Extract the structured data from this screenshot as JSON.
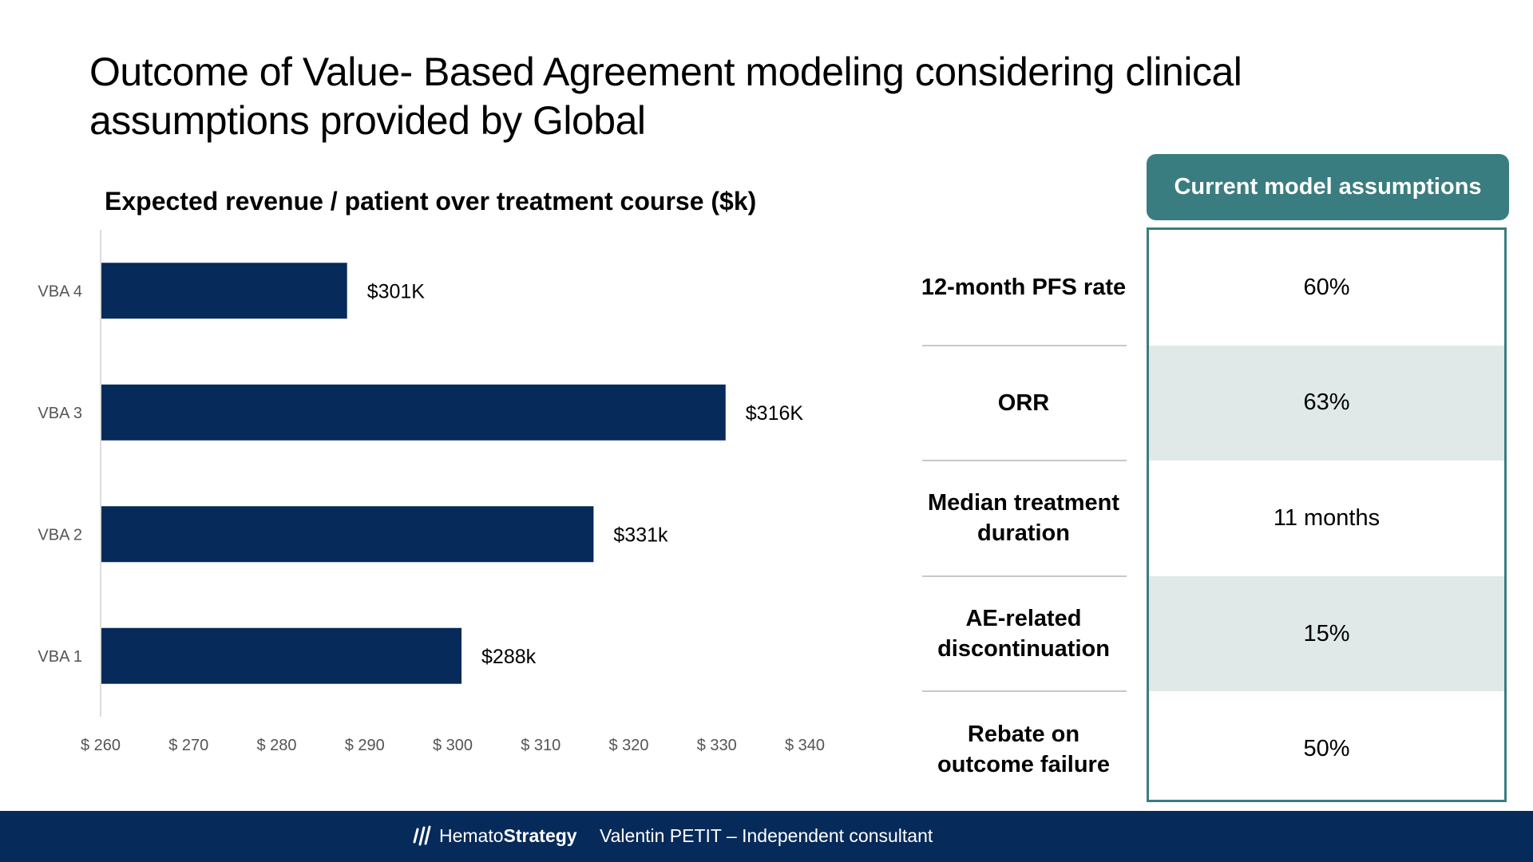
{
  "slide": {
    "title": "Outcome of Value- Based Agreement modeling considering clinical assumptions provided by Global"
  },
  "chart_data": {
    "type": "bar",
    "orientation": "horizontal",
    "title": "Expected revenue / patient over treatment course ($k)",
    "xlabel": "",
    "ylabel": "",
    "categories": [
      "VBA 4",
      "VBA 3",
      "VBA 2",
      "VBA 1"
    ],
    "values": [
      288,
      331,
      316,
      301
    ],
    "data_labels": [
      "$301K",
      "$316K",
      "$331k",
      "$288k"
    ],
    "xlim": [
      260,
      340
    ],
    "x_ticks": [
      260,
      270,
      280,
      290,
      300,
      310,
      320,
      330,
      340
    ],
    "x_tick_labels": [
      "$ 260",
      "$ 270",
      "$ 280",
      "$ 290",
      "$ 300",
      "$ 310",
      "$ 320",
      "$ 330",
      "$ 340"
    ],
    "grid": false,
    "legend": "none",
    "bar_color": "#062a59"
  },
  "assumptions": {
    "header": "Current model assumptions",
    "rows": [
      {
        "label": "12-month PFS rate",
        "value": "60%"
      },
      {
        "label": "ORR",
        "value": "63%"
      },
      {
        "label": "Median treatment duration",
        "value": "11 months"
      },
      {
        "label": "AE-related discontinuation",
        "value": "15%"
      },
      {
        "label": "Rebate on outcome failure",
        "value": "50%"
      }
    ],
    "accent_color": "#3a7d80",
    "shade_color": "#e1e8e8"
  },
  "footer": {
    "brand_regular": "Hemato",
    "brand_bold": "Strategy",
    "credit": "Valentin PETIT – Independent consultant",
    "background": "#062a59"
  }
}
